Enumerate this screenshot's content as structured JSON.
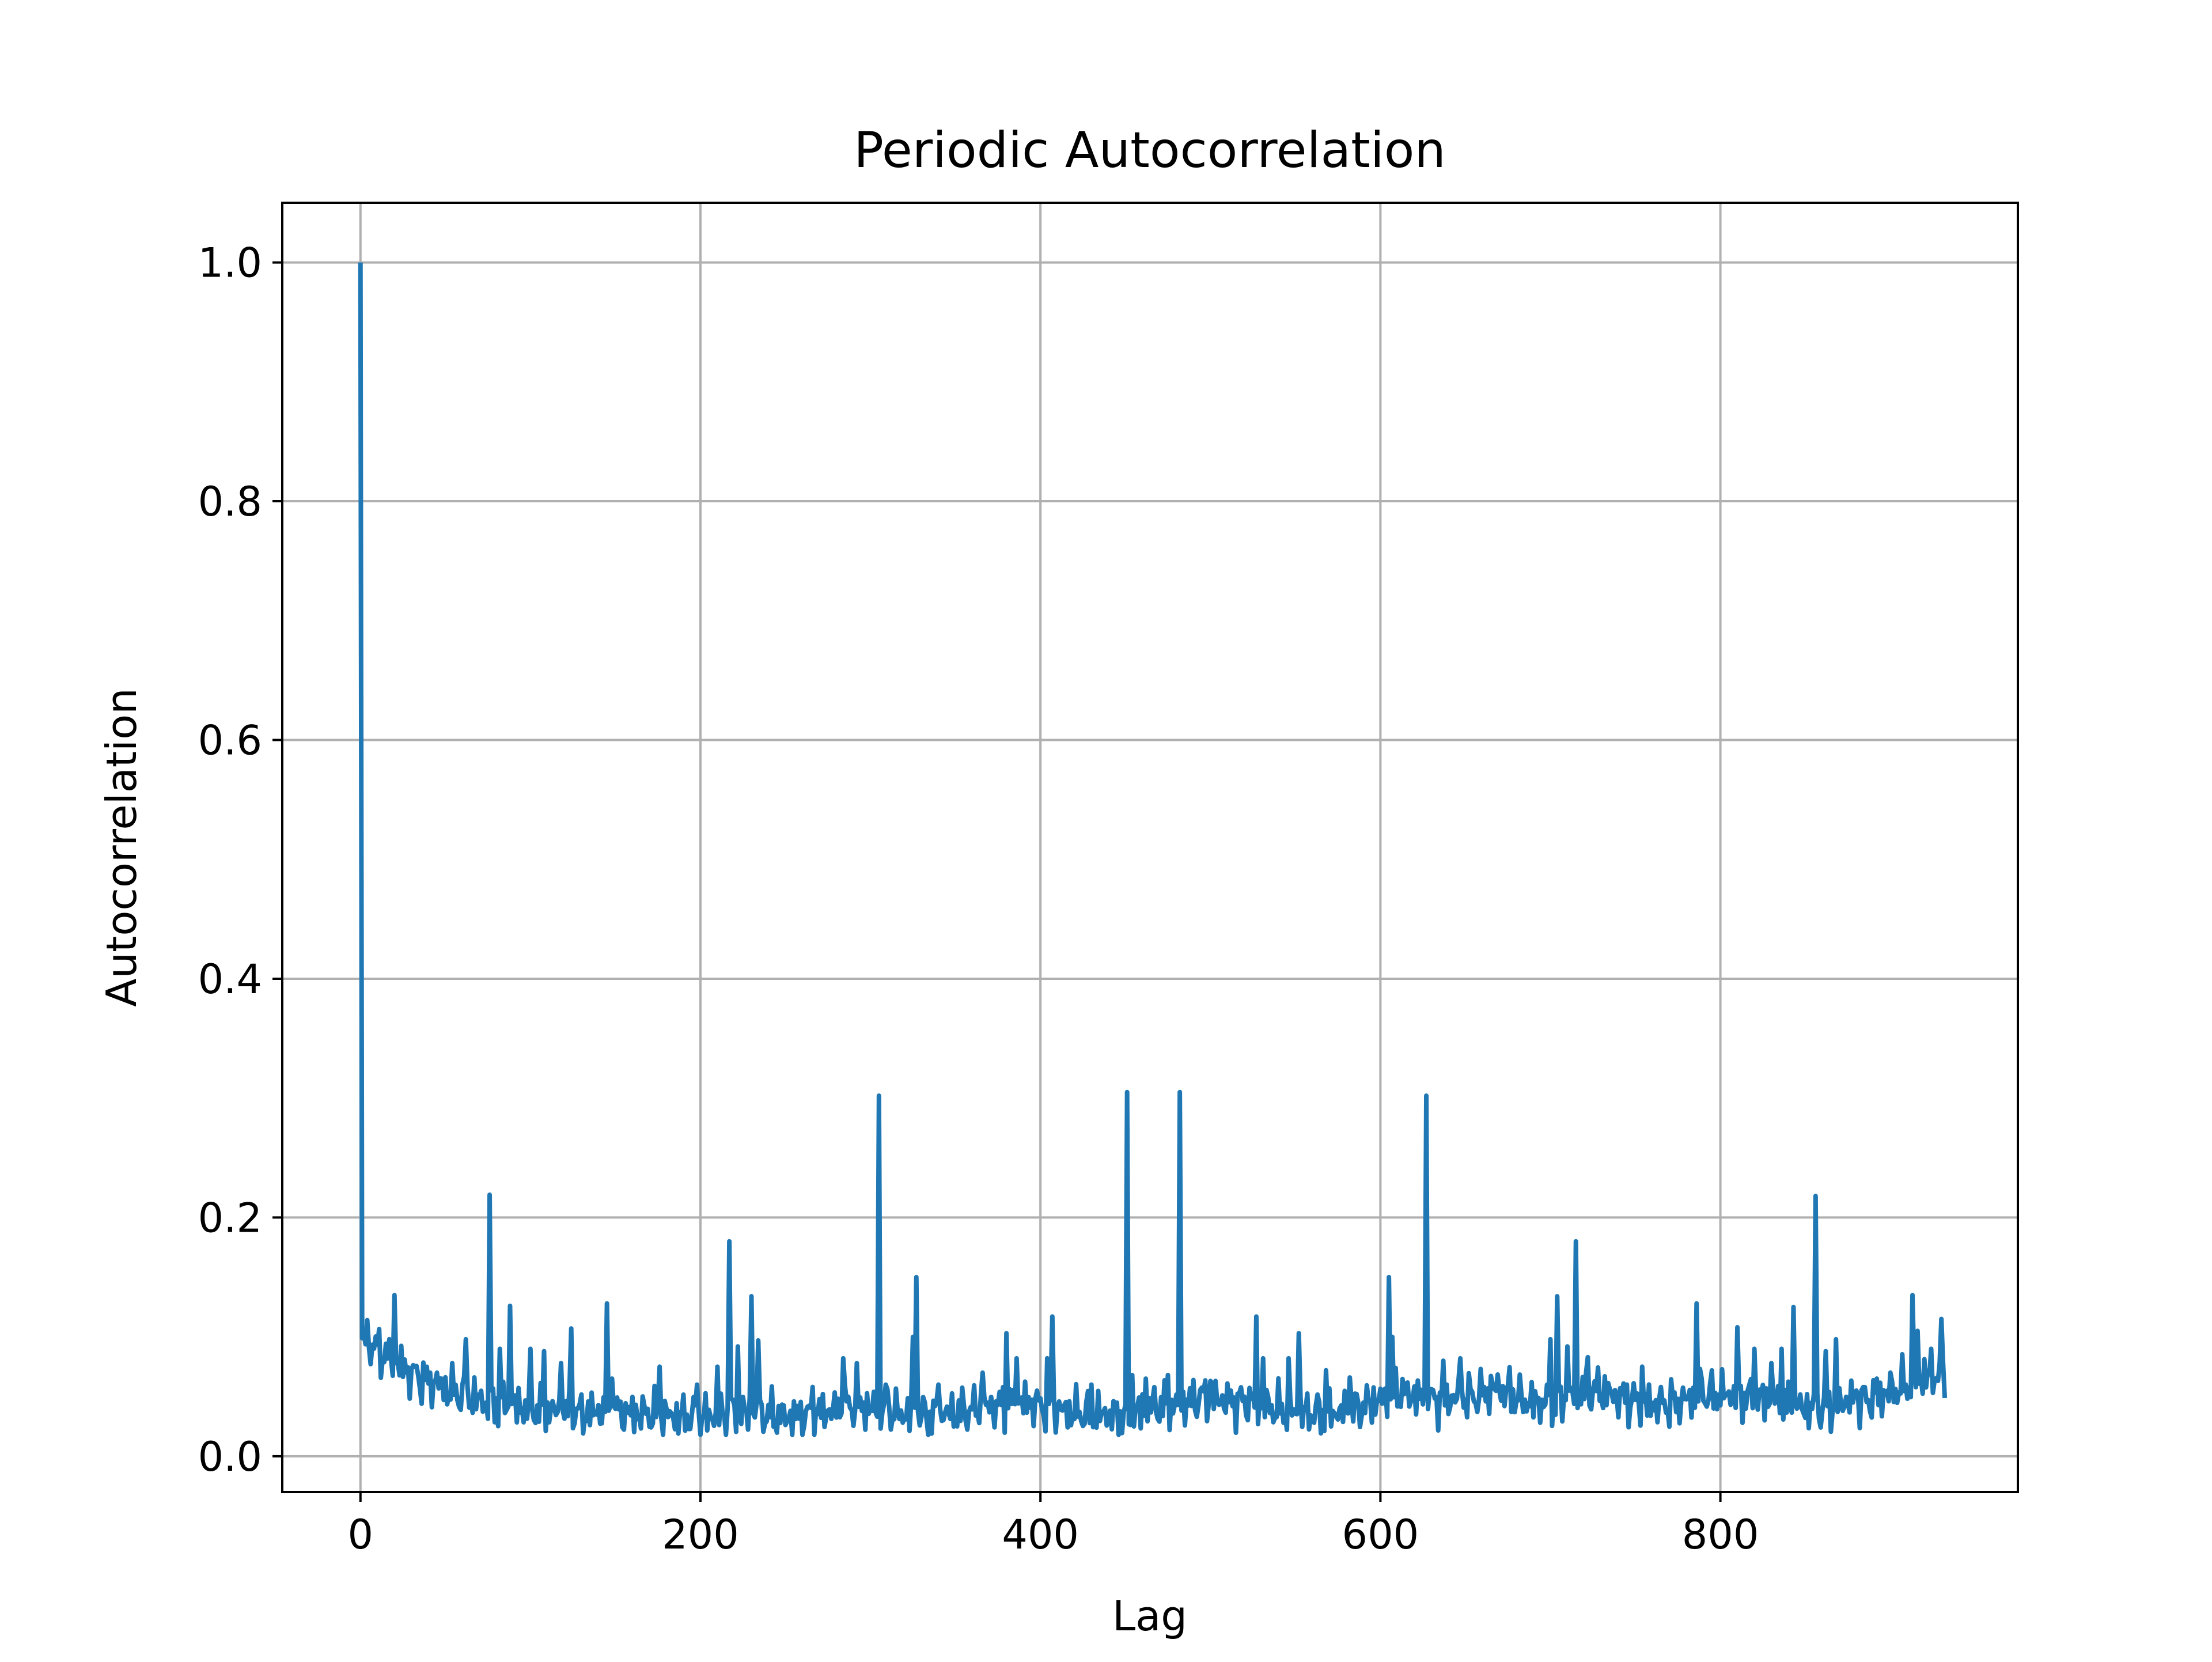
{
  "chart_data": {
    "type": "line",
    "title": "Periodic Autocorrelation",
    "xlabel": "Lag",
    "ylabel": "Autocorrelation",
    "xlim": [
      -46,
      975
    ],
    "ylim": [
      -0.03,
      1.05
    ],
    "x_ticks": [
      0,
      200,
      400,
      600,
      800
    ],
    "y_ticks": [
      0.0,
      0.2,
      0.4,
      0.6,
      0.8,
      1.0
    ],
    "x_tick_labels": [
      "0",
      "200",
      "400",
      "600",
      "800"
    ],
    "y_tick_labels": [
      "0.0",
      "0.2",
      "0.4",
      "0.6",
      "0.8",
      "1.0"
    ],
    "grid": true,
    "legend": "none",
    "series": [
      {
        "color": "#1f77b4",
        "x_start": 0,
        "x_step": 1,
        "baseline": [
          0.1,
          0.085,
          0.07,
          0.06,
          0.052,
          0.046,
          0.042,
          0.04,
          0.037,
          0.036,
          0.038,
          0.036,
          0.035,
          0.033,
          0.033,
          0.035,
          0.036,
          0.033,
          0.034,
          0.038,
          0.043,
          0.038,
          0.035,
          0.034,
          0.036,
          0.04,
          0.043,
          0.045,
          0.04,
          0.036,
          0.035,
          0.034,
          0.042,
          0.041,
          0.05,
          0.046,
          0.046,
          0.039,
          0.036,
          0.036,
          0.038,
          0.046,
          0.054,
          0.048,
          0.048,
          0.05,
          0.057,
          0.046,
          0.044,
          0.052,
          0.055,
          0.049,
          0.043,
          0.044,
          0.05,
          0.052,
          0.05,
          0.046,
          0.04,
          0.04,
          0.046,
          0.048,
          0.055,
          0.065,
          0.07
        ],
        "spikes": [
          [
            0,
            1.0
          ],
          [
            2,
            0.09
          ],
          [
            4,
            0.114
          ],
          [
            20,
            0.135
          ],
          [
            32,
            0.075
          ],
          [
            45,
            0.07
          ],
          [
            62,
            0.098
          ],
          [
            76,
            0.219
          ],
          [
            82,
            0.09
          ],
          [
            88,
            0.126
          ],
          [
            100,
            0.09
          ],
          [
            108,
            0.088
          ],
          [
            118,
            0.078
          ],
          [
            124,
            0.107
          ],
          [
            145,
            0.128
          ],
          [
            148,
            0.065
          ],
          [
            176,
            0.075
          ],
          [
            198,
            0.06
          ],
          [
            210,
            0.075
          ],
          [
            217,
            0.18
          ],
          [
            222,
            0.092
          ],
          [
            230,
            0.134
          ],
          [
            234,
            0.097
          ],
          [
            266,
            0.058
          ],
          [
            284,
            0.082
          ],
          [
            292,
            0.078
          ],
          [
            305,
            0.302
          ],
          [
            310,
            0.056
          ],
          [
            325,
            0.1
          ],
          [
            327,
            0.15
          ],
          [
            340,
            0.06
          ],
          [
            366,
            0.07
          ],
          [
            380,
            0.103
          ],
          [
            386,
            0.082
          ],
          [
            404,
            0.082
          ],
          [
            407,
            0.117
          ],
          [
            430,
            0.06
          ],
          [
            451,
            0.305
          ],
          [
            454,
            0.068
          ],
          [
            462,
            0.065
          ],
          [
            475,
            0.068
          ],
          [
            482,
            0.305
          ],
          [
            500,
            0.063
          ],
          [
            510,
            0.058
          ],
          [
            527,
            0.117
          ],
          [
            531,
            0.082
          ],
          [
            546,
            0.082
          ],
          [
            552,
            0.103
          ],
          [
            568,
            0.072
          ],
          [
            582,
            0.066
          ],
          [
            605,
            0.15
          ],
          [
            607,
            0.1
          ],
          [
            627,
            0.302
          ],
          [
            637,
            0.08
          ],
          [
            647,
            0.082
          ],
          [
            666,
            0.06
          ],
          [
            678,
            0.056
          ],
          [
            700,
            0.098
          ],
          [
            704,
            0.134
          ],
          [
            710,
            0.092
          ],
          [
            715,
            0.18
          ],
          [
            722,
            0.083
          ],
          [
            734,
            0.06
          ],
          [
            754,
            0.075
          ],
          [
            786,
            0.128
          ],
          [
            789,
            0.065
          ],
          [
            810,
            0.108
          ],
          [
            820,
            0.09
          ],
          [
            830,
            0.078
          ],
          [
            836,
            0.09
          ],
          [
            843,
            0.125
          ],
          [
            856,
            0.218
          ],
          [
            862,
            0.088
          ],
          [
            868,
            0.098
          ],
          [
            880,
            0.055
          ],
          [
            892,
            0.065
          ],
          [
            900,
            0.07
          ],
          [
            913,
            0.135
          ],
          [
            916,
            0.105
          ],
          [
            924,
            0.09
          ],
          [
            930,
            0.115
          ]
        ],
        "n_points": 933
      }
    ]
  }
}
